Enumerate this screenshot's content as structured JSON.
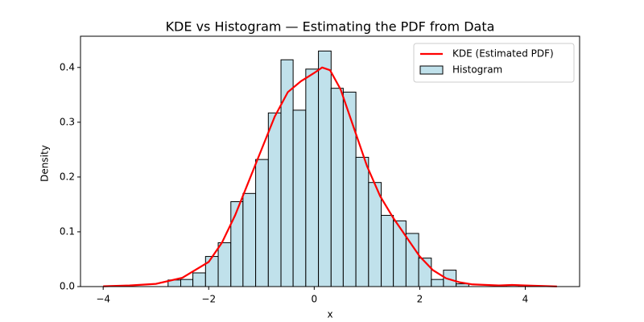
{
  "chart_data": {
    "type": "histogram",
    "title": "KDE vs Histogram — Estimating the PDF from Data",
    "xlabel": "x",
    "ylabel": "Density",
    "name": "Histogram",
    "color": "#c0e1eb",
    "edgecolor": "#000000",
    "bins": [
      -2.77,
      -2.53,
      -2.3,
      -2.06,
      -1.82,
      -1.58,
      -1.35,
      -1.11,
      -0.87,
      -0.63,
      -0.4,
      -0.16,
      0.08,
      0.32,
      0.55,
      0.79,
      1.03,
      1.27,
      1.5,
      1.74,
      1.98,
      2.22,
      2.45,
      2.69,
      2.93,
      3.17,
      3.4,
      3.64,
      3.88
    ],
    "values": [
      0.012,
      0.013,
      0.025,
      0.055,
      0.08,
      0.155,
      0.17,
      0.232,
      0.317,
      0.414,
      0.322,
      0.397,
      0.43,
      0.362,
      0.355,
      0.236,
      0.19,
      0.13,
      0.12,
      0.097,
      0.052,
      0.013,
      0.03,
      0.005,
      0,
      0,
      0,
      0.003
    ],
    "lines": [
      {
        "type": "line",
        "name": "KDE (Estimated PDF)",
        "color": "#ff0000",
        "x": [
          -4,
          -3.5,
          -3,
          -2.5,
          -2,
          -1.75,
          -1.5,
          -1.25,
          -1,
          -0.75,
          -0.5,
          -0.25,
          0,
          0.15,
          0.3,
          0.5,
          0.75,
          1,
          1.25,
          1.5,
          1.75,
          2,
          2.25,
          2.5,
          2.75,
          3,
          3.5,
          3.75,
          4,
          4.6
        ],
        "values": [
          0.0005,
          0.002,
          0.005,
          0.016,
          0.045,
          0.08,
          0.13,
          0.19,
          0.25,
          0.31,
          0.355,
          0.375,
          0.39,
          0.4,
          0.395,
          0.36,
          0.29,
          0.22,
          0.165,
          0.125,
          0.09,
          0.055,
          0.03,
          0.015,
          0.008,
          0.004,
          0.002,
          0.003,
          0.002,
          0.0003
        ]
      }
    ],
    "legend": "upper right",
    "xlim": [
      -4.43,
      5.03
    ],
    "ylim": [
      0,
      0.457
    ],
    "xticks": [
      {
        "value": -4,
        "label": "−4"
      },
      {
        "value": -2,
        "label": "−2"
      },
      0,
      2,
      4
    ],
    "yticks": [
      {
        "value": 0,
        "label": "0.0"
      },
      0.1,
      0.2,
      0.3,
      0.4
    ]
  }
}
